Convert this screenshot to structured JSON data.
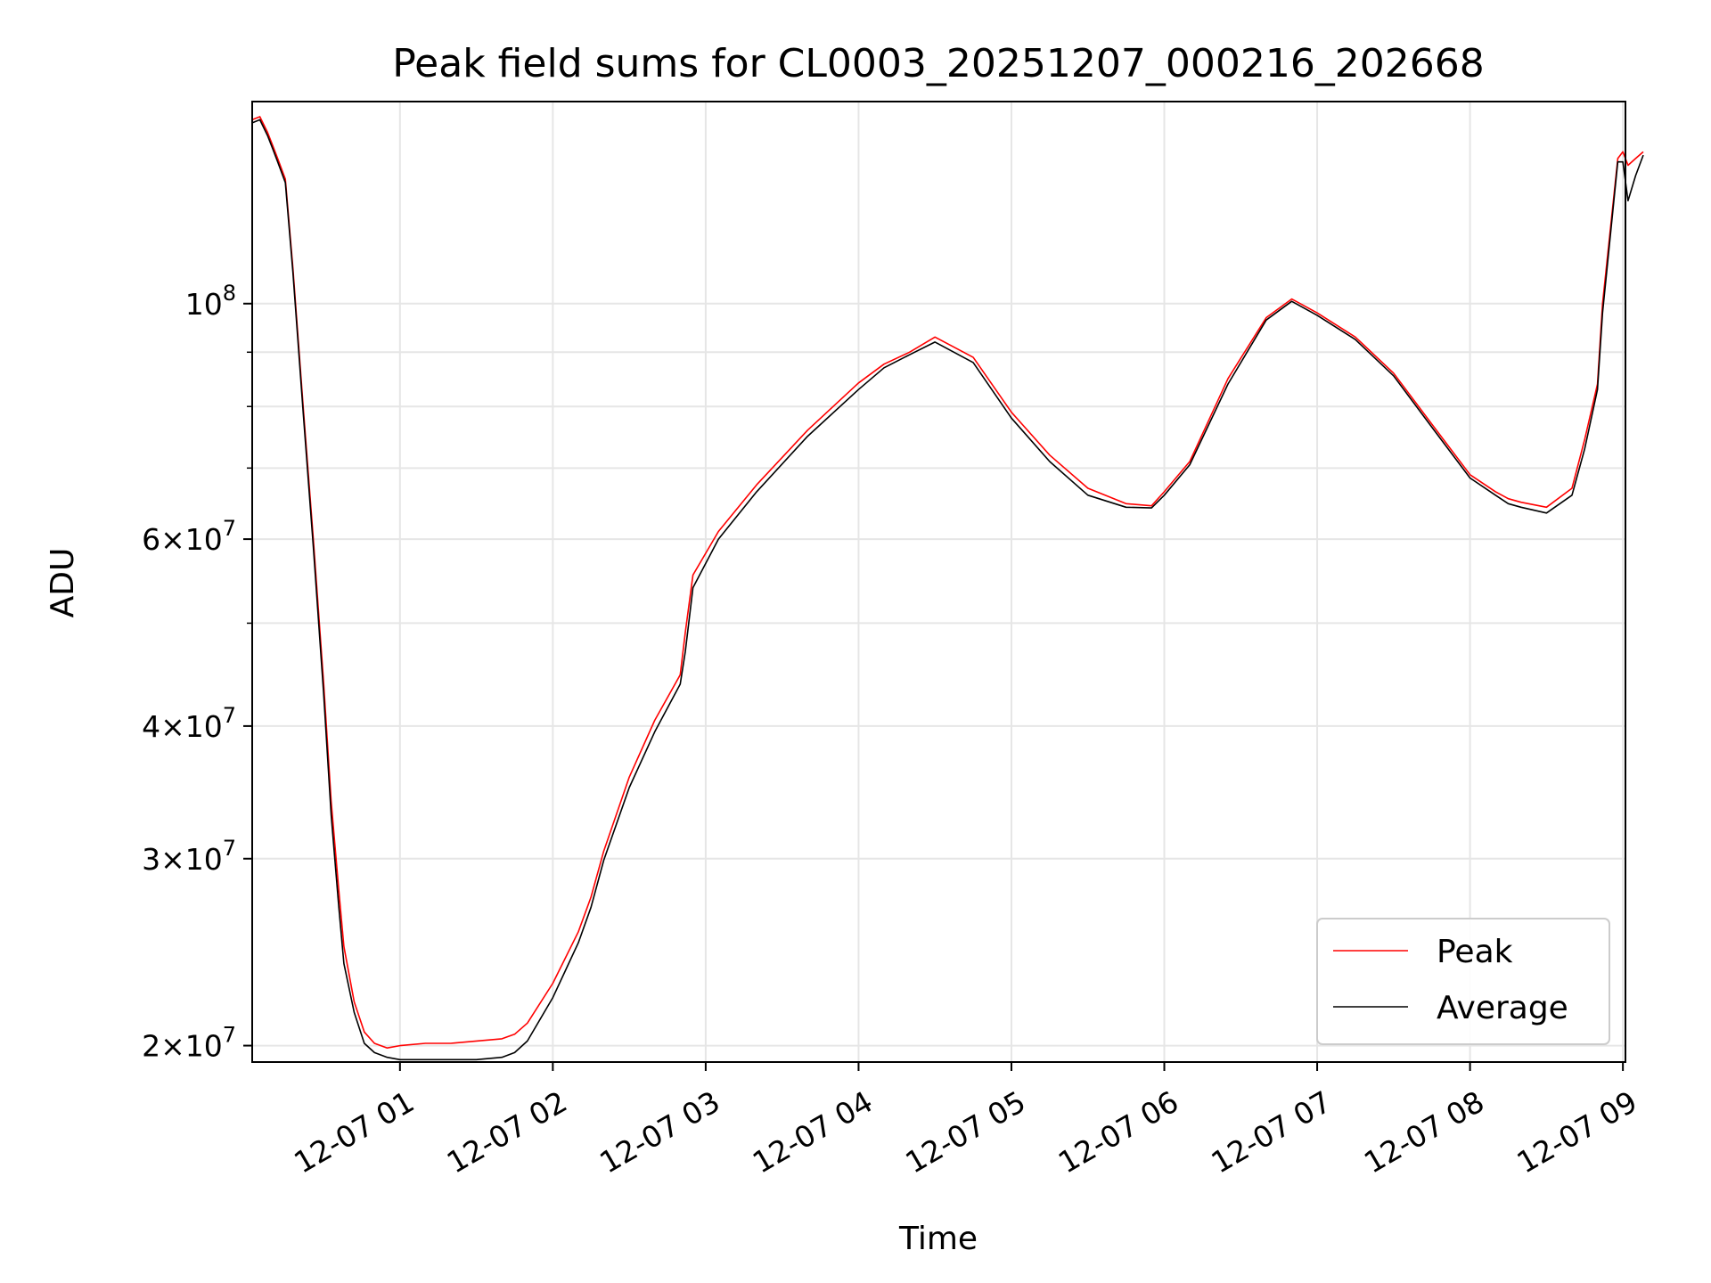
{
  "chart_data": {
    "type": "line",
    "title": "Peak field sums for CL0003_20251207_000216_202668",
    "xlabel": "Time",
    "ylabel": "ADU",
    "yscale": "log",
    "xlim": [
      "2025-12-07 00:02",
      "2025-12-07 09:01"
    ],
    "ylim": [
      19300000,
      155000000
    ],
    "grid": true,
    "legend": "lower right",
    "x_ticks": [
      {
        "value": "2025-12-07 01:00",
        "label": "12-07 01"
      },
      {
        "value": "2025-12-07 02:00",
        "label": "12-07 02"
      },
      {
        "value": "2025-12-07 03:00",
        "label": "12-07 03"
      },
      {
        "value": "2025-12-07 04:00",
        "label": "12-07 04"
      },
      {
        "value": "2025-12-07 05:00",
        "label": "12-07 05"
      },
      {
        "value": "2025-12-07 06:00",
        "label": "12-07 06"
      },
      {
        "value": "2025-12-07 07:00",
        "label": "12-07 07"
      },
      {
        "value": "2025-12-07 08:00",
        "label": "12-07 08"
      },
      {
        "value": "2025-12-07 09:00",
        "label": "12-07 09"
      }
    ],
    "y_ticks": [
      {
        "value": 20000000,
        "base": "2",
        "exp": "7"
      },
      {
        "value": 30000000,
        "base": "3",
        "exp": "7"
      },
      {
        "value": 40000000,
        "base": "4",
        "exp": "7"
      },
      {
        "value": 60000000,
        "base": "6",
        "exp": "7"
      },
      {
        "value": 100000000,
        "base": "",
        "exp": "8"
      }
    ],
    "y_minor": [
      50000000,
      70000000,
      80000000,
      90000000
    ],
    "series": [
      {
        "name": "Peak",
        "color": "#ff0000",
        "x": [
          "00:02",
          "00:05",
          "00:08",
          "00:10",
          "00:12",
          "00:15",
          "00:18",
          "00:22",
          "00:26",
          "00:30",
          "00:33",
          "00:36",
          "00:38",
          "00:42",
          "00:46",
          "00:50",
          "00:55",
          "01:00",
          "01:10",
          "01:20",
          "01:30",
          "01:40",
          "01:45",
          "01:50",
          "02:00",
          "02:10",
          "02:15",
          "02:20",
          "02:30",
          "02:40",
          "02:50",
          "02:52",
          "02:55",
          "03:05",
          "03:20",
          "03:40",
          "04:00",
          "04:10",
          "04:20",
          "04:30",
          "04:45",
          "05:00",
          "05:15",
          "05:30",
          "05:45",
          "05:55",
          "06:00",
          "06:10",
          "06:25",
          "06:40",
          "06:50",
          "07:00",
          "07:15",
          "07:30",
          "07:45",
          "08:00",
          "08:10",
          "08:15",
          "08:20",
          "08:30",
          "08:40",
          "08:45",
          "08:50",
          "08:52",
          "08:58",
          "09:00",
          "09:02",
          "09:05",
          "09:08"
        ],
        "y": [
          149000000,
          150000000,
          145000000,
          141000000,
          137000000,
          131000000,
          108000000,
          80000000,
          60000000,
          44000000,
          34000000,
          28000000,
          24800000,
          22000000,
          20600000,
          20100000,
          19900000,
          20000000,
          20100000,
          20100000,
          20200000,
          20300000,
          20500000,
          21000000,
          22900000,
          25600000,
          27600000,
          30500000,
          35800000,
          40500000,
          44700000,
          49000000,
          55500000,
          61000000,
          67500000,
          76000000,
          84200000,
          87700000,
          90000000,
          93000000,
          89000000,
          79000000,
          72000000,
          67000000,
          64800000,
          64500000,
          66500000,
          71000000,
          85000000,
          97000000,
          101000000,
          98000000,
          93000000,
          86000000,
          77000000,
          69000000,
          66500000,
          65500000,
          65000000,
          64300000,
          67000000,
          74500000,
          84000000,
          100000000,
          137000000,
          139000000,
          135000000,
          137000000,
          139000000
        ]
      },
      {
        "name": "Average",
        "color": "#000000",
        "x": [
          "00:02",
          "00:05",
          "00:08",
          "00:10",
          "00:12",
          "00:15",
          "00:18",
          "00:22",
          "00:26",
          "00:30",
          "00:33",
          "00:36",
          "00:38",
          "00:42",
          "00:46",
          "00:50",
          "00:55",
          "01:00",
          "01:10",
          "01:20",
          "01:30",
          "01:40",
          "01:45",
          "01:50",
          "02:00",
          "02:10",
          "02:15",
          "02:20",
          "02:30",
          "02:40",
          "02:50",
          "02:52",
          "02:55",
          "03:05",
          "03:20",
          "03:40",
          "04:00",
          "04:10",
          "04:20",
          "04:30",
          "04:45",
          "05:00",
          "05:15",
          "05:30",
          "05:45",
          "05:55",
          "06:00",
          "06:10",
          "06:25",
          "06:40",
          "06:50",
          "07:00",
          "07:15",
          "07:30",
          "07:45",
          "08:00",
          "08:10",
          "08:15",
          "08:20",
          "08:30",
          "08:40",
          "08:45",
          "08:50",
          "08:52",
          "08:58",
          "09:00",
          "09:02",
          "09:05",
          "09:08"
        ],
        "y": [
          148000000,
          149000000,
          144000000,
          140000000,
          136000000,
          130000000,
          107000000,
          79000000,
          59000000,
          43000000,
          33000000,
          27000000,
          23900000,
          21500000,
          20100000,
          19700000,
          19500000,
          19400000,
          19400000,
          19400000,
          19400000,
          19500000,
          19700000,
          20200000,
          22200000,
          25000000,
          27000000,
          29900000,
          35000000,
          39500000,
          43800000,
          47000000,
          54000000,
          60000000,
          66500000,
          75000000,
          83000000,
          87000000,
          89500000,
          92000000,
          88000000,
          78000000,
          71000000,
          66000000,
          64300000,
          64200000,
          66000000,
          70500000,
          84000000,
          96500000,
          100500000,
          97500000,
          92500000,
          85500000,
          76500000,
          68500000,
          66000000,
          64800000,
          64300000,
          63500000,
          66000000,
          73000000,
          83000000,
          98000000,
          136000000,
          136000000,
          125000000,
          132000000,
          138000000
        ]
      }
    ]
  }
}
